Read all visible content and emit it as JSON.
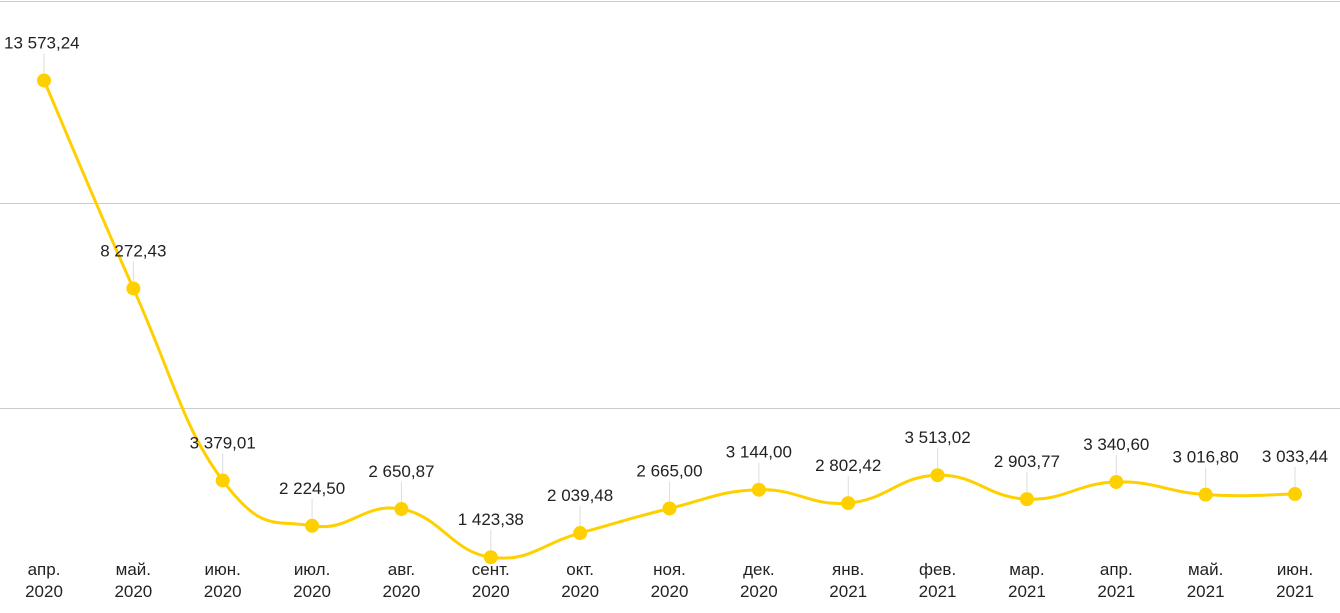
{
  "chart_data": {
    "type": "line",
    "title": "",
    "xlabel": "",
    "ylabel": "",
    "ylim": [
      1000,
      14000
    ],
    "grid": true,
    "legend": "none",
    "line_color": "#FFD000",
    "grid_color": "#cccccc",
    "categories": [
      [
        "апр.",
        "2020"
      ],
      [
        "май.",
        "2020"
      ],
      [
        "июн.",
        "2020"
      ],
      [
        "июл.",
        "2020"
      ],
      [
        "авг.",
        "2020"
      ],
      [
        "сент.",
        "2020"
      ],
      [
        "окт.",
        "2020"
      ],
      [
        "ноя.",
        "2020"
      ],
      [
        "дек.",
        "2020"
      ],
      [
        "янв.",
        "2021"
      ],
      [
        "фев.",
        "2021"
      ],
      [
        "мар.",
        "2021"
      ],
      [
        "апр.",
        "2021"
      ],
      [
        "май.",
        "2021"
      ],
      [
        "июн.",
        "2021"
      ]
    ],
    "values": [
      13573.24,
      8272.43,
      3379.01,
      2224.5,
      2650.87,
      1423.38,
      2039.48,
      2665.0,
      3144.0,
      2802.42,
      3513.02,
      2903.77,
      3340.6,
      3016.8,
      3033.44
    ],
    "data_labels": [
      "13 573,24",
      "8 272,43",
      "3 379,01",
      "2 224,50",
      "2 650,87",
      "1 423,38",
      "2 039,48",
      "2 665,00",
      "3 144,00",
      "2 802,42",
      "3 513,02",
      "2 903,77",
      "3 340,60",
      "3 016,80",
      "3 033,44"
    ]
  }
}
